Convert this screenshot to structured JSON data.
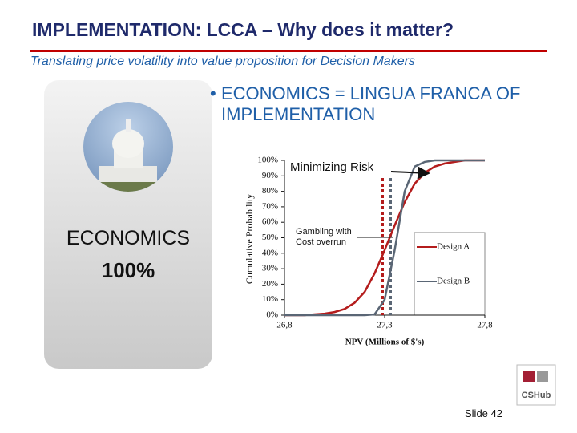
{
  "slide": {
    "title": "IMPLEMENTATION: LCCA – Why does it matter?",
    "subtitle": "Translating price volatility into value proposition for Decision Makers",
    "bullet": "ECONOMICS = LINGUA FRANCA OF IMPLEMENTATION",
    "panel_label": "ECONOMICS",
    "panel_value": "100%",
    "logo": "CSHub",
    "slide_number": "Slide 42"
  },
  "chart_data": {
    "type": "line",
    "x_label": "NPV (Millions of $'s)",
    "y_label": "Cumulative Probability",
    "x": [
      26.8,
      26.85,
      26.9,
      26.95,
      27.0,
      27.05,
      27.1,
      27.15,
      27.2,
      27.25,
      27.3,
      27.35,
      27.4,
      27.45,
      27.5,
      27.55,
      27.6,
      27.65,
      27.7,
      27.75,
      27.8
    ],
    "series": [
      {
        "name": "Design A",
        "color": "#b41c1c",
        "values": [
          0,
          0,
          0,
          0.5,
          1,
          2,
          4,
          8,
          15,
          27,
          42,
          58,
          73,
          85,
          92,
          96,
          98,
          99,
          100,
          100,
          100
        ]
      },
      {
        "name": "Design B",
        "color": "#5a6675",
        "values": [
          0,
          0,
          0,
          0,
          0,
          0,
          0,
          0,
          0,
          0.5,
          10,
          42,
          80,
          96,
          99,
          100,
          100,
          100,
          100,
          100,
          100
        ]
      }
    ],
    "reference_lines": [
      {
        "value": 27.29,
        "color": "#b41c1c"
      },
      {
        "value": 27.33,
        "color": "#5a6675"
      }
    ],
    "annotations": [
      "Minimizing Risk",
      "Gambling with Cost overrun"
    ],
    "xlim": [
      26.8,
      27.8
    ],
    "ylim": [
      0,
      100
    ],
    "xticks": [
      {
        "value": 26.8,
        "label": "26,8"
      },
      {
        "value": 27.3,
        "label": "27,3"
      },
      {
        "value": 27.8,
        "label": "27,8"
      }
    ],
    "yticks": [
      {
        "value": 0,
        "label": "0%"
      },
      {
        "value": 10,
        "label": "10%"
      },
      {
        "value": 20,
        "label": "20%"
      },
      {
        "value": 30,
        "label": "30%"
      },
      {
        "value": 40,
        "label": "40%"
      },
      {
        "value": 50,
        "label": "50%"
      },
      {
        "value": 60,
        "label": "60%"
      },
      {
        "value": 70,
        "label": "70%"
      },
      {
        "value": 80,
        "label": "80%"
      },
      {
        "value": 90,
        "label": "90%"
      },
      {
        "value": 100,
        "label": "100%"
      }
    ]
  }
}
